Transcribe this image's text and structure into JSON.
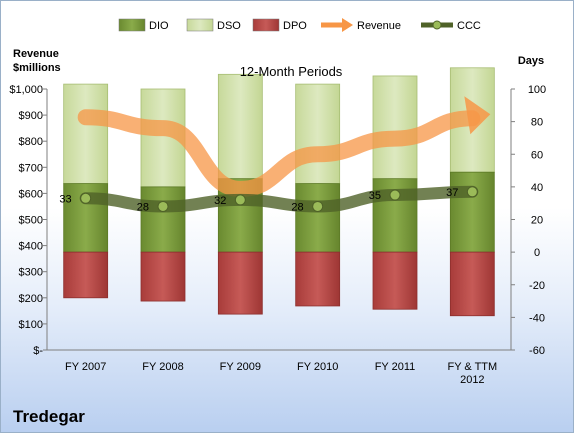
{
  "chart_data": {
    "type": "bar",
    "title": "12-Month Periods",
    "company": "Tredegar",
    "left_axis_title": "Revenue\n$millions",
    "right_axis_title": "Days",
    "categories": [
      "FY 2007",
      "FY 2008",
      "FY 2009",
      "FY 2010",
      "FY 2011",
      "FY & TTM\n2012"
    ],
    "left_ticks": [
      "$-",
      "$100",
      "$200",
      "$300",
      "$400",
      "$500",
      "$600",
      "$700",
      "$800",
      "$900",
      "$1,000"
    ],
    "right_ticks": [
      "-60",
      "-40",
      "-20",
      "0",
      "20",
      "40",
      "60",
      "80",
      "100"
    ],
    "left_ylim": [
      0,
      1000
    ],
    "right_ylim": [
      -60,
      100
    ],
    "legend_position": "top",
    "legend": [
      {
        "name": "DIO",
        "kind": "bar",
        "color": "#77933c"
      },
      {
        "name": "DSO",
        "kind": "bar",
        "color": "#d7e4bd"
      },
      {
        "name": "DPO",
        "kind": "bar",
        "color": "#b84b4b"
      },
      {
        "name": "Revenue",
        "kind": "arrow",
        "color": "#f79646"
      },
      {
        "name": "CCC",
        "kind": "line",
        "color": "#4f6228"
      }
    ],
    "units": "days",
    "series": [
      {
        "name": "DIO",
        "values": [
          42,
          40,
          45,
          42,
          45,
          49
        ]
      },
      {
        "name": "DSO",
        "values": [
          61,
          60,
          64,
          61,
          63,
          64
        ]
      },
      {
        "name": "DPO",
        "values": [
          -28,
          -30,
          -38,
          -33,
          -35,
          -39
        ]
      },
      {
        "name": "CCC",
        "values": [
          33,
          28,
          32,
          28,
          35,
          37
        ]
      }
    ],
    "revenue_path_millions": [
      892,
      850,
      617,
      750,
      810,
      888
    ],
    "ccc_labels": [
      "33",
      "28",
      "32",
      "28",
      "35",
      "37"
    ],
    "grid": false
  }
}
